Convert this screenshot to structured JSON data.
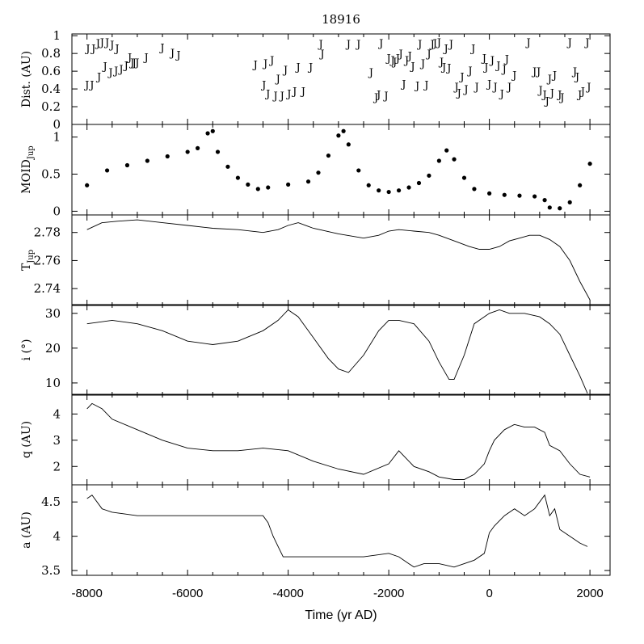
{
  "title": "18916",
  "xlabel": "Time (yr AD)",
  "chart_data": {
    "type": "line",
    "title": "18916",
    "xlabel": "Time (yr AD)",
    "xlim": [
      -8300,
      2400
    ],
    "xticks": [
      -8000,
      -6000,
      -4000,
      -2000,
      0,
      2000
    ],
    "xtick_labels": [
      "-8000",
      "-6000",
      "-4000",
      "-2000",
      "0",
      "2000"
    ],
    "panels": [
      {
        "key": "dist",
        "type": "scatter",
        "marker": "J",
        "ylabel": "Dist. (AU)",
        "ylim": [
          0,
          1.02
        ],
        "yticks": [
          0,
          0.2,
          0.4,
          0.6,
          0.8,
          1
        ],
        "ytick_labels": [
          "0",
          "0.2",
          "0.4",
          "0.6",
          "0.8",
          "1"
        ],
        "x": [
          -8000,
          -7980,
          -7900,
          -7870,
          -7780,
          -7760,
          -7700,
          -7640,
          -7600,
          -7530,
          -7500,
          -7420,
          -7400,
          -7320,
          -7220,
          -7150,
          -7100,
          -7060,
          -7000,
          -6820,
          -6500,
          -6300,
          -6180,
          -4650,
          -4480,
          -4450,
          -4400,
          -4320,
          -4250,
          -4200,
          -4120,
          -4050,
          -3980,
          -3870,
          -3800,
          -3700,
          -3550,
          -3350,
          -3320,
          -2800,
          -2600,
          -2350,
          -2250,
          -2200,
          -2150,
          -2050,
          -2000,
          -1920,
          -1880,
          -1820,
          -1760,
          -1700,
          -1640,
          -1580,
          -1520,
          -1430,
          -1380,
          -1320,
          -1250,
          -1200,
          -1130,
          -1080,
          -1000,
          -950,
          -900,
          -860,
          -800,
          -760,
          -650,
          -600,
          -540,
          -460,
          -380,
          -320,
          -250,
          -100,
          -60,
          0,
          60,
          120,
          180,
          250,
          300,
          350,
          400,
          500,
          780,
          900,
          980,
          1020,
          1100,
          1150,
          1200,
          1250,
          1300,
          1400,
          1450,
          1600,
          1700,
          1750,
          1800,
          1860,
          1950,
          1980
        ],
        "y": [
          0.45,
          0.86,
          0.45,
          0.86,
          0.92,
          0.54,
          0.93,
          0.66,
          0.93,
          0.59,
          0.9,
          0.61,
          0.86,
          0.63,
          0.67,
          0.76,
          0.7,
          0.7,
          0.7,
          0.76,
          0.87,
          0.81,
          0.79,
          0.68,
          0.45,
          0.69,
          0.35,
          0.73,
          0.33,
          0.52,
          0.33,
          0.62,
          0.35,
          0.38,
          0.65,
          0.38,
          0.65,
          0.91,
          0.8,
          0.91,
          0.91,
          0.59,
          0.31,
          0.34,
          0.92,
          0.33,
          0.75,
          0.73,
          0.71,
          0.75,
          0.8,
          0.46,
          0.73,
          0.78,
          0.66,
          0.44,
          0.91,
          0.69,
          0.45,
          0.8,
          0.91,
          0.92,
          0.93,
          0.71,
          0.65,
          0.86,
          0.64,
          0.91,
          0.43,
          0.36,
          0.54,
          0.4,
          0.61,
          0.86,
          0.43,
          0.75,
          0.65,
          0.46,
          0.73,
          0.43,
          0.67,
          0.35,
          0.63,
          0.74,
          0.43,
          0.56,
          0.93,
          0.6,
          0.6,
          0.39,
          0.34,
          0.27,
          0.52,
          0.36,
          0.56,
          0.34,
          0.31,
          0.93,
          0.6,
          0.54,
          0.34,
          0.38,
          0.93,
          0.43
        ]
      },
      {
        "key": "moid",
        "type": "scatter",
        "marker": "dot",
        "ylabel": "MOID_Jup",
        "ylim": [
          -0.05,
          1.17
        ],
        "yticks": [
          0,
          0.5,
          1
        ],
        "ytick_labels": [
          "0",
          "0.5",
          "1"
        ],
        "x": [
          -8000,
          -7600,
          -7200,
          -6800,
          -6400,
          -6000,
          -5800,
          -5600,
          -5500,
          -5400,
          -5200,
          -5000,
          -4800,
          -4600,
          -4400,
          -4000,
          -3600,
          -3400,
          -3200,
          -3000,
          -2900,
          -2800,
          -2600,
          -2400,
          -2200,
          -2000,
          -1800,
          -1600,
          -1400,
          -1200,
          -1000,
          -850,
          -700,
          -500,
          -300,
          0,
          300,
          600,
          900,
          1100,
          1200,
          1400,
          1600,
          1800,
          2000
        ],
        "y": [
          0.35,
          0.55,
          0.62,
          0.68,
          0.74,
          0.8,
          0.85,
          1.05,
          1.08,
          0.8,
          0.6,
          0.45,
          0.36,
          0.3,
          0.32,
          0.36,
          0.4,
          0.52,
          0.75,
          1.02,
          1.08,
          0.9,
          0.55,
          0.35,
          0.28,
          0.26,
          0.28,
          0.32,
          0.38,
          0.48,
          0.68,
          0.82,
          0.7,
          0.45,
          0.3,
          0.24,
          0.22,
          0.21,
          0.2,
          0.15,
          0.05,
          0.04,
          0.12,
          0.35,
          0.64
        ]
      },
      {
        "key": "tjup",
        "type": "line",
        "ylabel": "T_Jup",
        "ylim": [
          2.728,
          2.7925
        ],
        "yticks": [
          2.74,
          2.76,
          2.78
        ],
        "ytick_labels": [
          "2.74",
          "2.76",
          "2.78"
        ],
        "x": [
          -8000,
          -7700,
          -7400,
          -7000,
          -6500,
          -6000,
          -5500,
          -5000,
          -4500,
          -4200,
          -4000,
          -3800,
          -3500,
          -3000,
          -2500,
          -2200,
          -2000,
          -1800,
          -1500,
          -1200,
          -1000,
          -700,
          -400,
          -200,
          0,
          200,
          400,
          600,
          800,
          1000,
          1200,
          1400,
          1600,
          1800,
          2000
        ],
        "y": [
          2.782,
          2.787,
          2.788,
          2.789,
          2.787,
          2.785,
          2.783,
          2.782,
          2.78,
          2.782,
          2.785,
          2.787,
          2.783,
          2.779,
          2.776,
          2.778,
          2.781,
          2.782,
          2.781,
          2.78,
          2.778,
          2.774,
          2.77,
          2.768,
          2.768,
          2.77,
          2.774,
          2.776,
          2.778,
          2.778,
          2.775,
          2.77,
          2.76,
          2.745,
          2.732
        ]
      },
      {
        "key": "incl",
        "type": "line",
        "ylabel": "i (°)",
        "ylim": [
          6.5,
          32.5
        ],
        "yticks": [
          10,
          20,
          30
        ],
        "ytick_labels": [
          "10",
          "20",
          "30"
        ],
        "x": [
          -8000,
          -7500,
          -7000,
          -6500,
          -6000,
          -5500,
          -5000,
          -4500,
          -4200,
          -4000,
          -3800,
          -3500,
          -3200,
          -3000,
          -2800,
          -2500,
          -2200,
          -2000,
          -1800,
          -1500,
          -1200,
          -1000,
          -800,
          -700,
          -500,
          -300,
          0,
          200,
          400,
          700,
          1000,
          1200,
          1400,
          1600,
          1800,
          1950
        ],
        "y": [
          27,
          28,
          27,
          25,
          22,
          21,
          22,
          25,
          28,
          31,
          29,
          23,
          17,
          14,
          13,
          18,
          25,
          28,
          28,
          27,
          22,
          16,
          11,
          11,
          18,
          27,
          30,
          31,
          30,
          30,
          29,
          27,
          24,
          18,
          12,
          7
        ]
      },
      {
        "key": "q",
        "type": "line",
        "ylabel": "q (AU)",
        "ylim": [
          1.3,
          4.75
        ],
        "yticks": [
          2,
          3,
          4
        ],
        "ytick_labels": [
          "2",
          "3",
          "4"
        ],
        "x": [
          -8000,
          -7900,
          -7700,
          -7500,
          -7000,
          -6500,
          -6000,
          -5500,
          -5000,
          -4500,
          -4000,
          -3500,
          -3000,
          -2500,
          -2000,
          -1800,
          -1700,
          -1500,
          -1200,
          -1000,
          -700,
          -500,
          -300,
          -100,
          0,
          100,
          300,
          500,
          700,
          900,
          1100,
          1200,
          1400,
          1600,
          1800,
          2000
        ],
        "y": [
          4.2,
          4.4,
          4.2,
          3.8,
          3.4,
          3.0,
          2.7,
          2.6,
          2.6,
          2.7,
          2.6,
          2.2,
          1.9,
          1.7,
          2.1,
          2.6,
          2.4,
          2.0,
          1.8,
          1.6,
          1.5,
          1.5,
          1.7,
          2.1,
          2.6,
          3.0,
          3.4,
          3.6,
          3.5,
          3.5,
          3.3,
          2.8,
          2.6,
          2.1,
          1.7,
          1.6
        ]
      },
      {
        "key": "a",
        "type": "line",
        "ylabel": "a (AU)",
        "ylim": [
          3.43,
          4.75
        ],
        "yticks": [
          3.5,
          4,
          4.5
        ],
        "ytick_labels": [
          "3.5",
          "4",
          "4.5"
        ],
        "x": [
          -8000,
          -7900,
          -7700,
          -7500,
          -7000,
          -6500,
          -6000,
          -5500,
          -5000,
          -4500,
          -4400,
          -4300,
          -4200,
          -4100,
          -4000,
          -3500,
          -3000,
          -2500,
          -2000,
          -1800,
          -1600,
          -1500,
          -1300,
          -1000,
          -700,
          -500,
          -300,
          -100,
          0,
          100,
          300,
          500,
          700,
          900,
          1100,
          1200,
          1300,
          1400,
          1600,
          1800,
          1950
        ],
        "y": [
          4.55,
          4.6,
          4.4,
          4.35,
          4.3,
          4.3,
          4.3,
          4.3,
          4.3,
          4.3,
          4.2,
          4.0,
          3.85,
          3.7,
          3.7,
          3.7,
          3.7,
          3.7,
          3.75,
          3.7,
          3.6,
          3.55,
          3.6,
          3.6,
          3.55,
          3.6,
          3.65,
          3.75,
          4.05,
          4.15,
          4.3,
          4.4,
          4.3,
          4.4,
          4.6,
          4.3,
          4.4,
          4.1,
          4.0,
          3.9,
          3.85
        ]
      }
    ]
  }
}
